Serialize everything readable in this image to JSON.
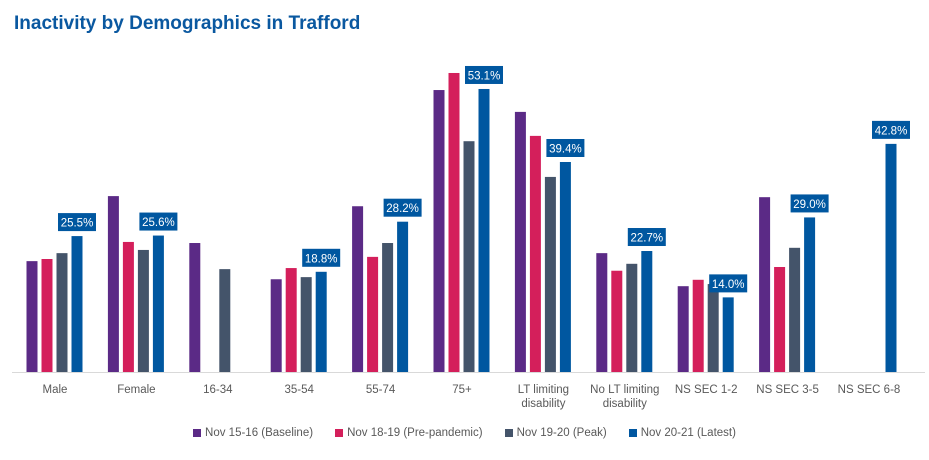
{
  "chart_data": {
    "type": "bar",
    "title": "Inactivity by Demographics  in Trafford",
    "categories": [
      "Male",
      "Female",
      "16-34",
      "35-54",
      "55-74",
      "75+",
      "LT limiting disability",
      "No LT limiting disability",
      "NS SEC 1-2",
      "NS SEC 3-5",
      "NS SEC 6-8"
    ],
    "category_lines": [
      [
        "Male"
      ],
      [
        "Female"
      ],
      [
        "16-34"
      ],
      [
        "35-54"
      ],
      [
        "55-74"
      ],
      [
        "75+"
      ],
      [
        "LT limiting",
        "disability"
      ],
      [
        "No LT limiting",
        "disability"
      ],
      [
        "NS SEC 1-2"
      ],
      [
        "NS SEC 3-5"
      ],
      [
        "NS SEC 6-8"
      ]
    ],
    "series": [
      {
        "name": "Nov 15-16 (Baseline)",
        "color": "#5b2a86",
        "values": [
          20.8,
          33.0,
          24.2,
          17.4,
          31.1,
          52.9,
          48.8,
          22.3,
          16.1,
          32.8,
          null
        ]
      },
      {
        "name": "Nov 18-19 (Pre-pandemic)",
        "color": "#d41f5b",
        "values": [
          21.2,
          24.4,
          null,
          19.5,
          21.6,
          56.1,
          44.3,
          19.0,
          17.3,
          19.7,
          null
        ]
      },
      {
        "name": "Nov 19-20 (Peak)",
        "color": "#44546a",
        "values": [
          22.3,
          22.9,
          19.3,
          17.8,
          24.2,
          43.3,
          36.6,
          20.3,
          16.5,
          23.3,
          null
        ]
      },
      {
        "name": "Nov 20-21 (Latest)",
        "color": "#0057a0",
        "values": [
          25.5,
          25.6,
          null,
          18.8,
          28.2,
          53.1,
          39.4,
          22.7,
          14.0,
          29.0,
          42.8
        ]
      }
    ],
    "data_labels": [
      "25.5%",
      "25.6%",
      "",
      "18.8%",
      "28.2%",
      "53.1%",
      "39.4%",
      "22.7%",
      "14.0%",
      "29.0%",
      "42.8%"
    ],
    "ylim": [
      0,
      60
    ],
    "grid": false,
    "legend_position": "bottom"
  }
}
